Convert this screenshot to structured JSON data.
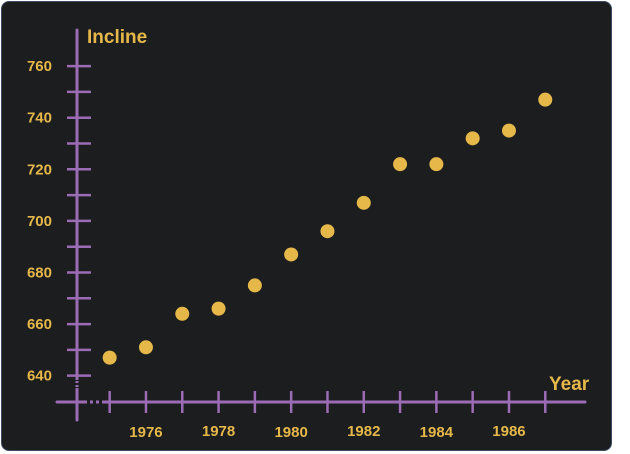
{
  "chart_data": {
    "type": "scatter",
    "title": "",
    "xlabel": "Year",
    "ylabel": "Incline",
    "xlim": [
      1974.1,
      1988.1
    ],
    "ylim": [
      629.8,
      774
    ],
    "x_ticks": [
      1975,
      1976,
      1977,
      1978,
      1979,
      1980,
      1981,
      1982,
      1983,
      1984,
      1985,
      1986,
      1987
    ],
    "x_tick_labels": [
      1976,
      1978,
      1980,
      1982,
      1984,
      1986
    ],
    "y_ticks": [
      640,
      650,
      660,
      670,
      680,
      690,
      700,
      710,
      720,
      730,
      740,
      750,
      760
    ],
    "y_tick_labels": [
      640,
      660,
      680,
      700,
      720,
      740,
      760
    ],
    "grid": false,
    "series": [
      {
        "x": [
          1975,
          1976,
          1977,
          1978,
          1979,
          1980,
          1981,
          1982,
          1983,
          1984,
          1985,
          1986,
          1987
        ],
        "y": [
          647,
          651,
          664,
          666,
          675,
          687,
          696,
          707,
          722,
          722,
          732,
          735,
          747
        ]
      }
    ],
    "colors": {
      "background": "#1c1d1f",
      "border": "#3c4a63",
      "axis": "#9b6bb5",
      "points": "#e6b84a",
      "text": "#e6b84a"
    }
  }
}
